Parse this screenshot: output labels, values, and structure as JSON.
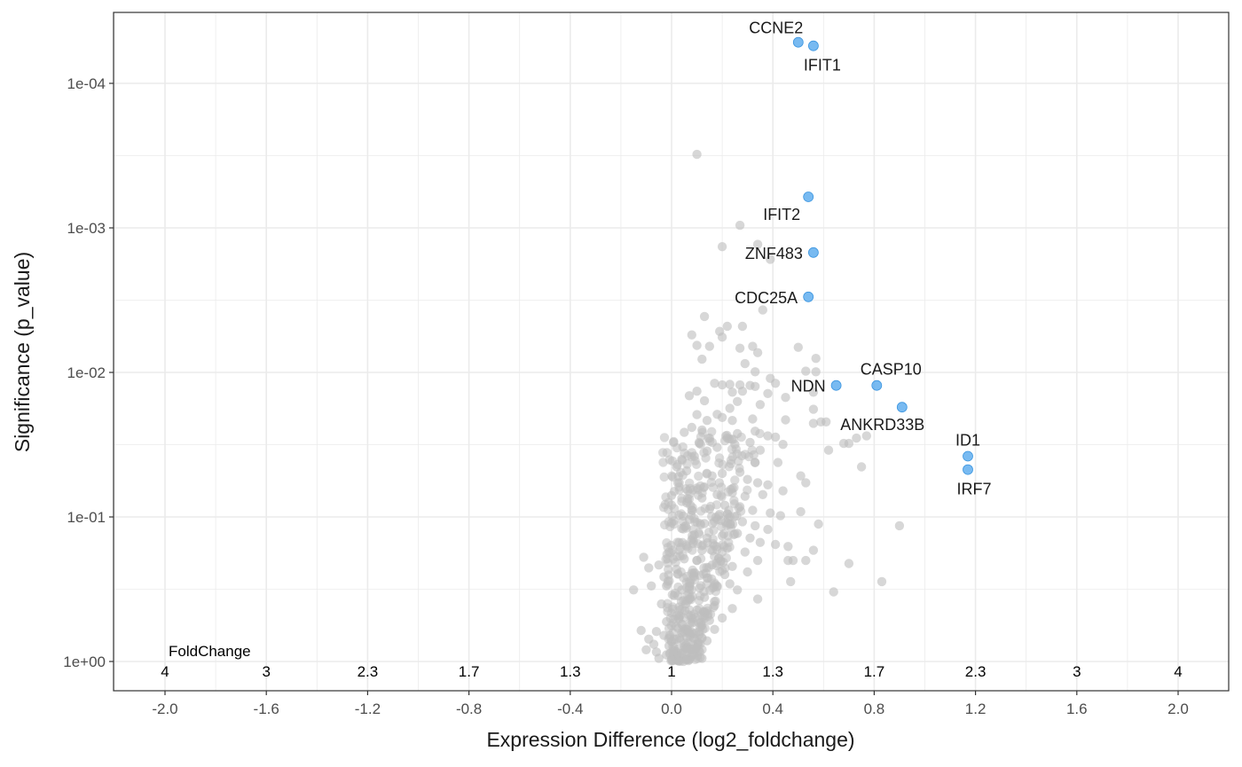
{
  "chart_data": {
    "type": "scatter",
    "xlabel": "Expression Difference (log2_foldchange)",
    "ylabel": "Significance (p_value)",
    "xlim": [
      -2.2,
      2.2
    ],
    "ylim_p": [
      1.0,
      3e-05
    ],
    "y_scale": "log10-reversed",
    "grid": true,
    "x_ticks": [
      "-2.0",
      "-1.6",
      "-1.2",
      "-0.8",
      "-0.4",
      "0.0",
      "0.4",
      "0.8",
      "1.2",
      "1.6",
      "2.0"
    ],
    "x_tick_values": [
      -2.0,
      -1.6,
      -1.2,
      -0.8,
      -0.4,
      0.0,
      0.4,
      0.8,
      1.2,
      1.6,
      2.0
    ],
    "y_ticks": [
      "1e+00",
      "1e-01",
      "1e-02",
      "1e-03",
      "1e-04"
    ],
    "y_tick_values": [
      1,
      0.1,
      0.01,
      0.001,
      0.0001
    ],
    "foldchange_axis": {
      "title": "FoldChange",
      "positions": [
        -2.0,
        -1.6,
        -1.2,
        -0.8,
        -0.4,
        0.0,
        0.4,
        0.8,
        1.2,
        1.6,
        2.0
      ],
      "labels": [
        "4",
        "3",
        "2.3",
        "1.7",
        "1.3",
        "1",
        "1.3",
        "1.7",
        "2.3",
        "3",
        "4"
      ]
    },
    "colors": {
      "background_point": "#bdbdbd",
      "highlight_point": "#56a9ee",
      "grid": "#ebebeb",
      "panel_border": "#333333"
    },
    "highlighted": [
      {
        "gene": "CCNE2",
        "x": 0.5,
        "p": 5.2e-05,
        "label_pos": "upper-left"
      },
      {
        "gene": "IFIT1",
        "x": 0.56,
        "p": 5.5e-05,
        "label_pos": "below"
      },
      {
        "gene": "IFIT2",
        "x": 0.54,
        "p": 0.00061,
        "label_pos": "below-left"
      },
      {
        "gene": "ZNF483",
        "x": 0.56,
        "p": 0.00148,
        "label_pos": "left"
      },
      {
        "gene": "CDC25A",
        "x": 0.54,
        "p": 0.003,
        "label_pos": "left"
      },
      {
        "gene": "NDN",
        "x": 0.65,
        "p": 0.0123,
        "label_pos": "left"
      },
      {
        "gene": "CASP10",
        "x": 0.81,
        "p": 0.0123,
        "label_pos": "above"
      },
      {
        "gene": "ANKRD33B",
        "x": 0.91,
        "p": 0.0174,
        "label_pos": "below-left"
      },
      {
        "gene": "ID1",
        "x": 1.17,
        "p": 0.038,
        "label_pos": "above"
      },
      {
        "gene": "IRF7",
        "x": 1.17,
        "p": 0.047,
        "label_pos": "below"
      }
    ],
    "background_points": [
      [
        0.1,
        0.00031
      ],
      [
        0.27,
        0.00096
      ],
      [
        0.2,
        0.00135
      ],
      [
        0.34,
        0.0013
      ],
      [
        0.39,
        0.00165
      ],
      [
        0.36,
        0.0037
      ],
      [
        0.13,
        0.0041
      ],
      [
        0.19,
        0.0052
      ],
      [
        0.2,
        0.0057
      ],
      [
        0.22,
        0.0048
      ],
      [
        0.28,
        0.0048
      ],
      [
        0.08,
        0.0055
      ],
      [
        0.1,
        0.0065
      ],
      [
        0.15,
        0.0066
      ],
      [
        0.27,
        0.0068
      ],
      [
        0.32,
        0.0066
      ],
      [
        0.5,
        0.0067
      ],
      [
        0.57,
        0.008
      ],
      [
        0.34,
        0.0073
      ],
      [
        0.12,
        0.0081
      ],
      [
        0.29,
        0.0087
      ],
      [
        0.33,
        0.0099
      ],
      [
        0.53,
        0.0098
      ],
      [
        0.57,
        0.0099
      ],
      [
        0.17,
        0.0119
      ],
      [
        0.2,
        0.0122
      ],
      [
        0.23,
        0.0121
      ],
      [
        0.27,
        0.0122
      ],
      [
        0.28,
        0.0135
      ],
      [
        0.33,
        0.0125
      ],
      [
        0.39,
        0.011
      ],
      [
        0.41,
        0.0119
      ],
      [
        0.31,
        0.0123
      ],
      [
        0.24,
        0.0137
      ],
      [
        0.38,
        0.014
      ],
      [
        0.45,
        0.0149
      ],
      [
        0.56,
        0.0137
      ],
      [
        0.1,
        0.0135
      ],
      [
        0.07,
        0.0145
      ],
      [
        0.13,
        0.0157
      ],
      [
        0.35,
        0.0167
      ],
      [
        0.23,
        0.0177
      ],
      [
        0.26,
        0.0159
      ],
      [
        0.18,
        0.0195
      ],
      [
        0.1,
        0.0196
      ],
      [
        0.14,
        0.0215
      ],
      [
        0.2,
        0.0205
      ],
      [
        0.24,
        0.0215
      ],
      [
        0.32,
        0.021
      ],
      [
        0.45,
        0.0213
      ],
      [
        0.56,
        0.018
      ],
      [
        0.59,
        0.022
      ],
      [
        0.56,
        0.0225
      ],
      [
        0.61,
        0.022
      ],
      [
        0.68,
        0.031
      ],
      [
        0.7,
        0.031
      ],
      [
        0.73,
        0.0285
      ],
      [
        0.77,
        0.0275
      ],
      [
        0.75,
        0.045
      ],
      [
        0.62,
        0.0345
      ],
      [
        0.44,
        0.0315
      ],
      [
        0.41,
        0.028
      ],
      [
        0.33,
        0.0255
      ],
      [
        0.38,
        0.0275
      ],
      [
        0.31,
        0.0305
      ],
      [
        0.35,
        0.0345
      ],
      [
        0.25,
        0.0315
      ],
      [
        0.22,
        0.0285
      ],
      [
        0.26,
        0.0265
      ],
      [
        0.15,
        0.0285
      ],
      [
        0.12,
        0.025
      ],
      [
        0.08,
        0.024
      ],
      [
        0.05,
        0.026
      ],
      [
        0.04,
        0.04
      ],
      [
        0.09,
        0.038
      ],
      [
        0.14,
        0.035
      ],
      [
        0.18,
        0.033
      ],
      [
        0.11,
        0.031
      ],
      [
        0.06,
        0.048
      ],
      [
        0.02,
        0.045
      ],
      [
        0.16,
        0.052
      ],
      [
        0.2,
        0.05
      ],
      [
        0.27,
        0.049
      ],
      [
        0.33,
        0.042
      ],
      [
        0.42,
        0.042
      ],
      [
        0.51,
        0.052
      ],
      [
        0.53,
        0.058
      ],
      [
        0.3,
        0.055
      ],
      [
        0.34,
        0.058
      ],
      [
        0.38,
        0.06
      ],
      [
        0.44,
        0.066
      ],
      [
        0.36,
        0.07
      ],
      [
        0.29,
        0.072
      ],
      [
        0.24,
        0.068
      ],
      [
        0.18,
        0.07
      ],
      [
        0.1,
        0.063
      ],
      [
        0.03,
        0.058
      ],
      [
        0.0,
        0.071
      ],
      [
        0.06,
        0.08
      ],
      [
        0.12,
        0.074
      ],
      [
        0.08,
        0.09
      ],
      [
        0.15,
        0.088
      ],
      [
        0.21,
        0.083
      ],
      [
        0.27,
        0.085
      ],
      [
        0.32,
        0.09
      ],
      [
        0.39,
        0.094
      ],
      [
        0.43,
        0.098
      ],
      [
        0.51,
        0.092
      ],
      [
        0.58,
        0.112
      ],
      [
        0.9,
        0.115
      ],
      [
        0.38,
        0.122
      ],
      [
        0.33,
        0.115
      ],
      [
        0.28,
        0.108
      ],
      [
        0.23,
        0.1
      ],
      [
        0.18,
        0.104
      ],
      [
        0.13,
        0.111
      ],
      [
        0.07,
        0.104
      ],
      [
        0.04,
        0.12
      ],
      [
        0.0,
        0.11
      ],
      [
        0.09,
        0.133
      ],
      [
        0.14,
        0.14
      ],
      [
        0.2,
        0.135
      ],
      [
        0.26,
        0.13
      ],
      [
        0.31,
        0.14
      ],
      [
        0.35,
        0.15
      ],
      [
        0.41,
        0.155
      ],
      [
        0.46,
        0.16
      ],
      [
        0.56,
        0.17
      ],
      [
        0.48,
        0.2
      ],
      [
        0.53,
        0.2
      ],
      [
        0.34,
        0.2
      ],
      [
        0.29,
        0.175
      ],
      [
        0.22,
        0.165
      ],
      [
        0.17,
        0.158
      ],
      [
        0.12,
        0.17
      ],
      [
        0.06,
        0.16
      ],
      [
        0.03,
        0.15
      ],
      [
        -0.01,
        0.175
      ],
      [
        0.05,
        0.195
      ],
      [
        0.1,
        0.2
      ],
      [
        0.16,
        0.215
      ],
      [
        0.24,
        0.22
      ],
      [
        0.3,
        0.24
      ],
      [
        0.21,
        0.25
      ],
      [
        0.14,
        0.265
      ],
      [
        0.08,
        0.245
      ],
      [
        0.02,
        0.23
      ],
      [
        -0.03,
        0.26
      ],
      [
        -0.05,
        0.215
      ],
      [
        -0.11,
        0.19
      ],
      [
        -0.09,
        0.225
      ],
      [
        -0.02,
        0.3
      ],
      [
        0.04,
        0.32
      ],
      [
        0.11,
        0.31
      ],
      [
        0.18,
        0.3
      ],
      [
        0.23,
        0.29
      ],
      [
        0.26,
        0.32
      ],
      [
        0.34,
        0.37
      ],
      [
        0.47,
        0.28
      ],
      [
        0.64,
        0.33
      ],
      [
        0.83,
        0.28
      ],
      [
        0.13,
        0.36
      ],
      [
        0.07,
        0.37
      ],
      [
        0.01,
        0.35
      ],
      [
        -0.04,
        0.4
      ],
      [
        0.03,
        0.42
      ],
      [
        0.1,
        0.44
      ],
      [
        0.17,
        0.41
      ],
      [
        0.24,
        0.43
      ],
      [
        0.2,
        0.5
      ],
      [
        0.15,
        0.52
      ],
      [
        0.08,
        0.5
      ],
      [
        0.02,
        0.48
      ],
      [
        -0.02,
        0.53
      ],
      [
        0.05,
        0.6
      ],
      [
        0.12,
        0.56
      ],
      [
        0.17,
        0.6
      ],
      [
        0.11,
        0.65
      ],
      [
        0.06,
        0.68
      ],
      [
        0.02,
        0.7
      ],
      [
        -0.03,
        0.66
      ],
      [
        -0.06,
        0.62
      ],
      [
        -0.09,
        0.7
      ],
      [
        -0.07,
        0.76
      ],
      [
        -0.01,
        0.78
      ],
      [
        0.05,
        0.79
      ],
      [
        0.1,
        0.76
      ],
      [
        0.14,
        0.72
      ],
      [
        0.09,
        0.84
      ],
      [
        0.04,
        0.88
      ],
      [
        -0.02,
        0.9
      ],
      [
        -0.06,
        0.86
      ],
      [
        -0.1,
        0.83
      ],
      [
        -0.05,
        0.95
      ],
      [
        0.0,
        0.97
      ],
      [
        0.06,
        0.96
      ],
      [
        0.12,
        0.95
      ],
      [
        -0.15,
        0.32
      ],
      [
        -0.12,
        0.61
      ],
      [
        -0.08,
        0.3
      ],
      [
        0.7,
        0.21
      ],
      [
        0.46,
        0.2
      ]
    ]
  }
}
